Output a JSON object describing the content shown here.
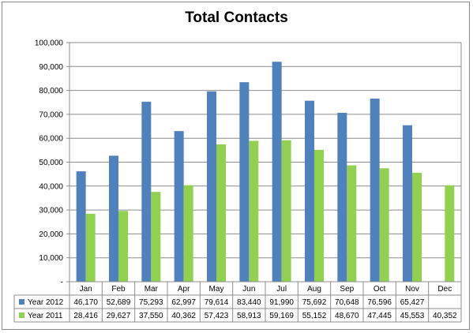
{
  "chart_data": {
    "type": "bar",
    "title": "Total Contacts",
    "categories": [
      "Jan",
      "Feb",
      "Mar",
      "Apr",
      "May",
      "Jun",
      "Jul",
      "Aug",
      "Sep",
      "Oct",
      "Nov",
      "Dec"
    ],
    "series": [
      {
        "name": "Year 2012",
        "color": "#4f81bd",
        "values": [
          46170,
          52689,
          75293,
          62997,
          79614,
          83440,
          91990,
          75692,
          70648,
          76596,
          65427,
          null
        ],
        "labels": [
          "46,170",
          "52,689",
          "75,293",
          "62,997",
          "79,614",
          "83,440",
          "91,990",
          "75,692",
          "70,648",
          "76,596",
          "65,427",
          ""
        ]
      },
      {
        "name": "Year 2011",
        "color": "#92d050",
        "values": [
          28416,
          29627,
          37550,
          40362,
          57423,
          58913,
          59169,
          55152,
          48670,
          47445,
          45553,
          40352
        ],
        "labels": [
          "28,416",
          "29,627",
          "37,550",
          "40,362",
          "57,423",
          "58,913",
          "59,169",
          "55,152",
          "48,670",
          "47,445",
          "45,553",
          "40,352"
        ]
      }
    ],
    "ylim": [
      0,
      100000
    ],
    "yticks": [
      0,
      10000,
      20000,
      30000,
      40000,
      50000,
      60000,
      70000,
      80000,
      90000,
      100000
    ],
    "ytick_labels": [
      "-",
      "10,000",
      "20,000",
      "30,000",
      "40,000",
      "50,000",
      "60,000",
      "70,000",
      "80,000",
      "90,000",
      "100,000"
    ],
    "grid": true,
    "legend": "data-table"
  }
}
